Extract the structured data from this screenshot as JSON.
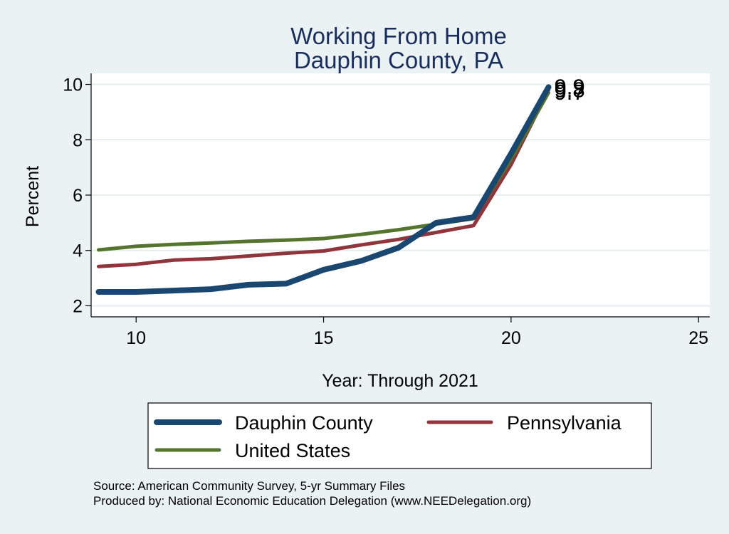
{
  "chart_data": {
    "type": "line",
    "title": "Working From Home",
    "subtitle": "Dauphin County, PA",
    "xlabel": "Year: Through 2021",
    "ylabel": "Percent",
    "xlim": [
      8.8,
      25.3
    ],
    "ylim": [
      1.6,
      10.4
    ],
    "xticks": [
      10,
      15,
      20,
      25
    ],
    "yticks": [
      2,
      4,
      6,
      8,
      10
    ],
    "grid": "horizontal",
    "legend_position": "bottom",
    "x": [
      9,
      10,
      11,
      12,
      13,
      14,
      15,
      16,
      17,
      18,
      19,
      20,
      21
    ],
    "series": [
      {
        "name": "Dauphin County",
        "color": "#1a476f",
        "values": [
          2.5,
          2.5,
          2.55,
          2.6,
          2.76,
          2.8,
          3.3,
          3.62,
          4.1,
          5.0,
          5.2,
          7.5,
          9.9
        ],
        "end_label": "9.9"
      },
      {
        "name": "Pennsylvania",
        "color": "#90353b",
        "values": [
          3.42,
          3.5,
          3.65,
          3.7,
          3.8,
          3.9,
          3.98,
          4.2,
          4.4,
          4.65,
          4.9,
          7.1,
          9.8
        ],
        "end_label": "9.8"
      },
      {
        "name": "United States",
        "color": "#55752f",
        "values": [
          4.02,
          4.15,
          4.22,
          4.27,
          4.33,
          4.37,
          4.43,
          4.58,
          4.75,
          4.95,
          5.15,
          7.3,
          9.7
        ],
        "end_label": "9.7"
      }
    ]
  },
  "notes": {
    "source": "Source: American Community Survey, 5-yr Summary Files",
    "produced": "Produced by: National Economic Education Delegation (www.NEEDelegation.org)"
  }
}
